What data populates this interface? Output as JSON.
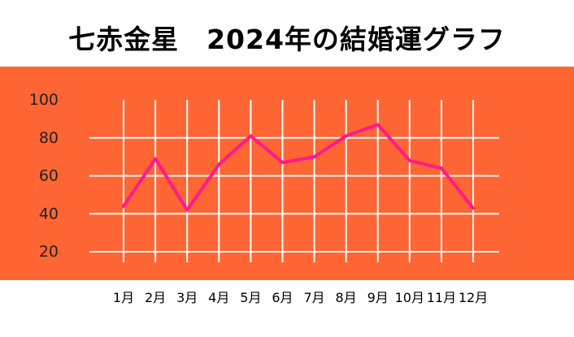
{
  "chart_data": {
    "type": "line",
    "title": "七赤金星　2024年の結婚運グラフ",
    "categories": [
      "1月",
      "2月",
      "3月",
      "4月",
      "5月",
      "6月",
      "7月",
      "8月",
      "9月",
      "10月",
      "11月",
      "12月"
    ],
    "series": [
      {
        "values": [
          44,
          69,
          42,
          66,
          81,
          67,
          70,
          81,
          87,
          68,
          64,
          43
        ]
      }
    ],
    "yticks": [
      100,
      80,
      60,
      40,
      20
    ],
    "ylim": [
      20,
      100
    ],
    "grid": true,
    "colors": {
      "background_band": "#ff6633",
      "grid": "#ffffff",
      "line": "#ff1a8c"
    }
  }
}
